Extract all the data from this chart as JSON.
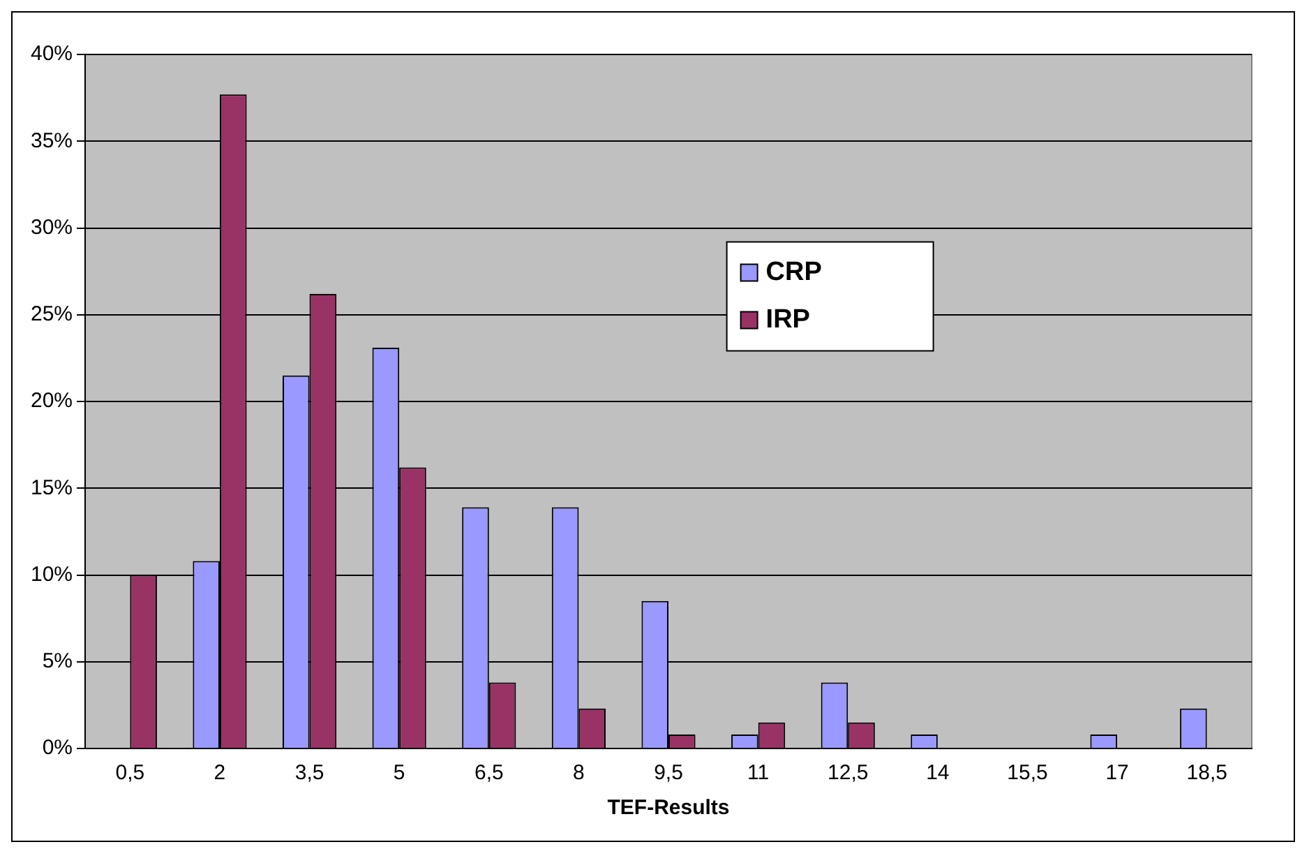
{
  "chart_data": {
    "type": "bar",
    "xlabel": "TEF-Results",
    "categories": [
      "0,5",
      "2",
      "3,5",
      "5",
      "6,5",
      "8",
      "9,5",
      "11",
      "12,5",
      "14",
      "15,5",
      "17",
      "18,5"
    ],
    "series": [
      {
        "name": "CRP",
        "color": "#9999ff",
        "values": [
          0,
          10.8,
          21.5,
          23.1,
          13.9,
          13.9,
          8.5,
          0.8,
          3.8,
          0.8,
          0,
          0.8,
          2.3
        ]
      },
      {
        "name": "IRP",
        "color": "#993366",
        "values": [
          10.0,
          37.7,
          26.2,
          16.2,
          3.8,
          2.3,
          0.8,
          1.5,
          1.5,
          0,
          0,
          0,
          0
        ]
      }
    ],
    "ylim": [
      0,
      40
    ],
    "yticks": [
      {
        "value": 0,
        "label": "0%"
      },
      {
        "value": 5,
        "label": "5%"
      },
      {
        "value": 10,
        "label": "10%"
      },
      {
        "value": 15,
        "label": "15%"
      },
      {
        "value": 20,
        "label": "20%"
      },
      {
        "value": 25,
        "label": "25%"
      },
      {
        "value": 30,
        "label": "30%"
      },
      {
        "value": 35,
        "label": "35%"
      },
      {
        "value": 40,
        "label": "40%"
      }
    ],
    "grid": "y",
    "legend": "top right"
  }
}
